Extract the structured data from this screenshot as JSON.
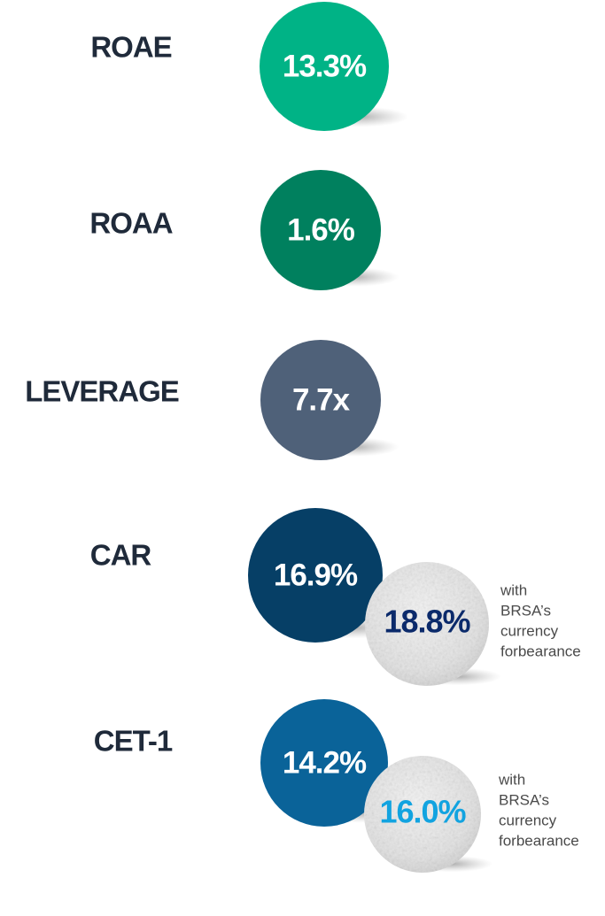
{
  "metrics": [
    {
      "label": "ROAE",
      "value": "13.3%",
      "color": "#00b386"
    },
    {
      "label": "ROAA",
      "value": "1.6%",
      "color": "#00805e"
    },
    {
      "label": "LEVERAGE",
      "value": "7.7x",
      "color": "#4f6179"
    },
    {
      "label": "CAR",
      "value": "16.9%",
      "color": "#063f66",
      "secondary": {
        "value": "18.8%",
        "color": "#0b2a6b",
        "note": [
          "with",
          "BRSA’s",
          "currency",
          "forbearance"
        ]
      }
    },
    {
      "label": "CET-1",
      "value": "14.2%",
      "color": "#0a6399",
      "secondary": {
        "value": "16.0%",
        "color": "#12a3e0",
        "note": [
          "with",
          "BRSA’s",
          "currency",
          "forbearance"
        ]
      }
    }
  ]
}
